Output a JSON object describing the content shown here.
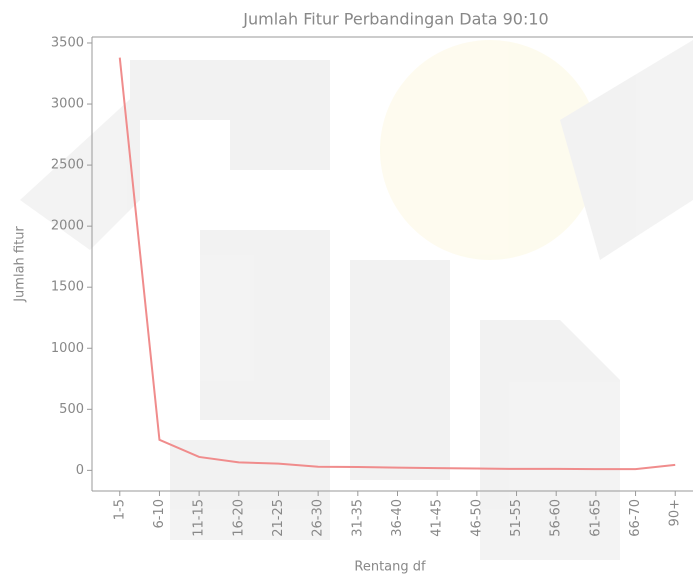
{
  "chart_data": {
    "type": "line",
    "title": "Jumlah Fitur Perbandingan Data 90:10",
    "x_label": "Rentang df",
    "y_label": "Jumlah fitur",
    "categories": [
      "1-5",
      "6-10",
      "11-15",
      "16-20",
      "21-25",
      "26-30",
      "31-35",
      "36-40",
      "41-45",
      "46-50",
      "51-55",
      "56-60",
      "61-65",
      "66-70",
      "90+"
    ],
    "values": [
      3380,
      250,
      110,
      65,
      55,
      30,
      28,
      22,
      18,
      15,
      12,
      12,
      10,
      10,
      45
    ],
    "color": "#f08c8c",
    "ylim": [
      -169,
      3549
    ],
    "yticks": [
      0,
      500,
      1000,
      1500,
      2000,
      2500,
      3000,
      3500
    ]
  }
}
